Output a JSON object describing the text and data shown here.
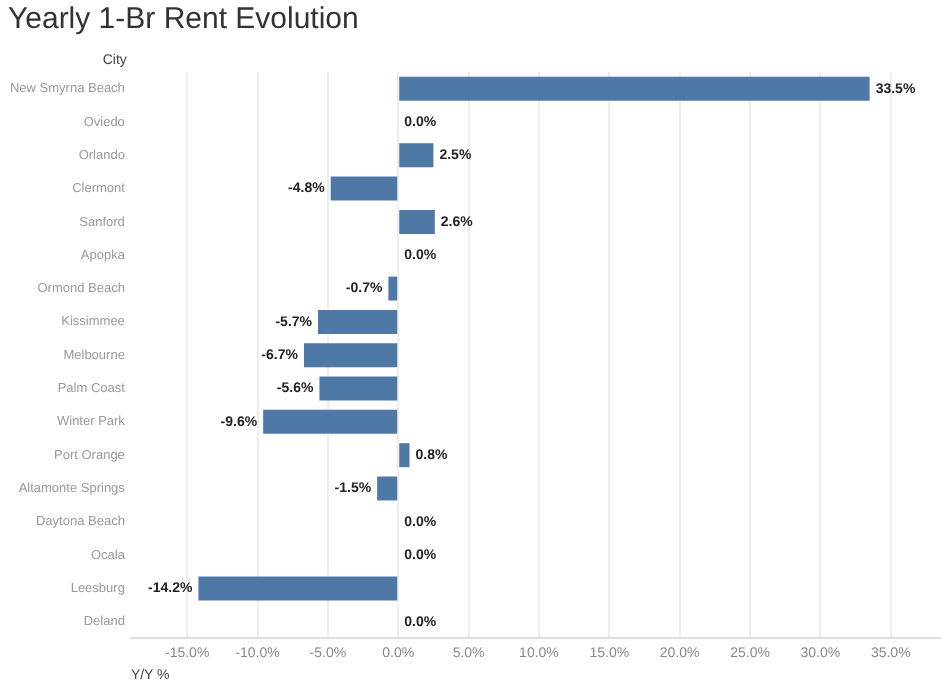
{
  "chart_data": {
    "type": "bar",
    "orientation": "horizontal",
    "title": "Yearly 1-Br Rent Evolution",
    "ylabel": "City",
    "xlabel": "Y/Y %",
    "categories": [
      "New Smyrna Beach",
      "Oviedo",
      "Orlando",
      "Clermont",
      "Sanford",
      "Apopka",
      "Ormond Beach",
      "Kissimmee",
      "Melbourne",
      "Palm Coast",
      "Winter Park",
      "Port Orange",
      "Altamonte Springs",
      "Daytona Beach",
      "Ocala",
      "Leesburg",
      "Deland"
    ],
    "values": [
      33.5,
      0.0,
      2.5,
      -4.8,
      2.6,
      0.0,
      -0.7,
      -5.7,
      -6.7,
      -5.6,
      -9.6,
      0.8,
      -1.5,
      0.0,
      0.0,
      -14.2,
      0.0
    ],
    "value_labels": [
      "33.5%",
      "0.0%",
      "2.5%",
      "-4.8%",
      "2.6%",
      "0.0%",
      "-0.7%",
      "-5.7%",
      "-6.7%",
      "-5.6%",
      "-9.6%",
      "0.8%",
      "-1.5%",
      "0.0%",
      "0.0%",
      "-14.2%",
      "0.0%"
    ],
    "color": "#4e79a7",
    "xlim": [
      -19,
      38.5
    ],
    "xticks": [
      {
        "value": -15,
        "label": "-15.0%"
      },
      {
        "value": -10,
        "label": "-10.0%"
      },
      {
        "value": -5,
        "label": "-5.0%"
      },
      {
        "value": 0,
        "label": "0.0%"
      },
      {
        "value": 5,
        "label": "5.0%"
      },
      {
        "value": 10,
        "label": "10.0%"
      },
      {
        "value": 15,
        "label": "15.0%"
      },
      {
        "value": 20,
        "label": "20.0%"
      },
      {
        "value": 25,
        "label": "25.0%"
      },
      {
        "value": 30,
        "label": "30.0%"
      },
      {
        "value": 35,
        "label": "35.0%"
      }
    ],
    "grid": "x",
    "legend": false
  }
}
